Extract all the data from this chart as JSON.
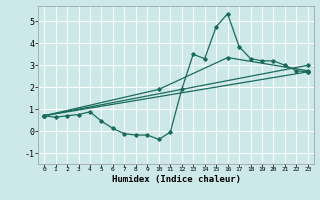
{
  "xlabel": "Humidex (Indice chaleur)",
  "bg_color": "#cce8e8",
  "grid_color": "#ffffff",
  "line_color": "#1a6b5a",
  "xlim": [
    -0.5,
    23.5
  ],
  "ylim": [
    -1.5,
    5.7
  ],
  "xticks": [
    0,
    1,
    2,
    3,
    4,
    5,
    6,
    7,
    8,
    9,
    10,
    11,
    12,
    13,
    14,
    15,
    16,
    17,
    18,
    19,
    20,
    21,
    22,
    23
  ],
  "yticks": [
    -1,
    0,
    1,
    2,
    3,
    4,
    5
  ],
  "line1_x": [
    0,
    1,
    2,
    3,
    4,
    5,
    6,
    7,
    8,
    9,
    10,
    11,
    12,
    13,
    14,
    15,
    16,
    17,
    18,
    19,
    20,
    21,
    22,
    23
  ],
  "line1_y": [
    0.7,
    0.63,
    0.7,
    0.75,
    0.88,
    0.45,
    0.12,
    -0.12,
    -0.18,
    -0.18,
    -0.38,
    -0.05,
    1.9,
    3.5,
    3.3,
    4.75,
    5.35,
    3.85,
    3.3,
    3.2,
    3.2,
    3.0,
    2.75,
    2.7
  ],
  "line2_x": [
    0,
    23
  ],
  "line2_y": [
    0.7,
    3.0
  ],
  "line3_x": [
    0,
    23
  ],
  "line3_y": [
    0.7,
    2.7
  ],
  "line4_x": [
    0,
    10,
    16,
    23
  ],
  "line4_y": [
    0.7,
    1.9,
    3.35,
    2.75
  ]
}
